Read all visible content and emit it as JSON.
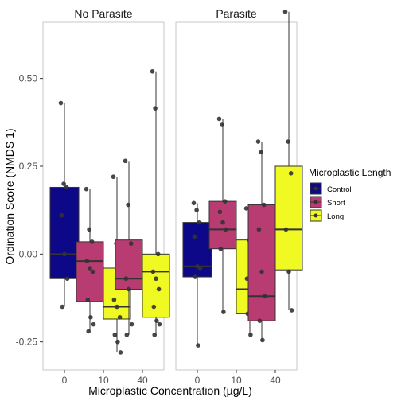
{
  "chart_data": {
    "type": "box",
    "ylabel": "Ordination Score (NMDS 1)",
    "xlabel": "Microplastic Concentration (µg/L)",
    "ylim": [
      -0.33,
      0.66
    ],
    "y_ticks": [
      -0.25,
      0.0,
      0.25,
      0.5
    ],
    "y_tick_labels": [
      "-0.25",
      "0.00",
      "0.25",
      "0.50"
    ],
    "x_categories": [
      "0",
      "10",
      "40"
    ],
    "grid": false,
    "legend_position": "right",
    "legend": {
      "title": "Microplastic Length",
      "items": [
        {
          "name": "Control",
          "color": "#0d0887"
        },
        {
          "name": "Short",
          "color": "#b83c72"
        },
        {
          "name": "Long",
          "color": "#f0f921"
        }
      ]
    },
    "panels": [
      {
        "label": "No Parasite",
        "boxes": [
          {
            "x": "0",
            "group": "Control",
            "q1": -0.07,
            "median": 0.0,
            "q3": 0.19,
            "whisker_low": -0.15,
            "whisker_high": 0.43,
            "points": [
              0.43,
              0.2,
              0.19,
              0.11,
              0.0,
              -0.07,
              -0.15
            ]
          },
          {
            "x": "10",
            "group": "Short",
            "q1": -0.135,
            "median": -0.02,
            "q3": 0.035,
            "whisker_low": -0.22,
            "whisker_high": 0.185,
            "points": [
              0.185,
              0.07,
              0.035,
              -0.02,
              -0.04,
              -0.05,
              -0.13,
              -0.18,
              -0.2,
              -0.22
            ]
          },
          {
            "x": "10",
            "group": "Long",
            "q1": -0.185,
            "median": -0.15,
            "q3": -0.04,
            "whisker_low": -0.28,
            "whisker_high": 0.22,
            "points": [
              0.22,
              0.03,
              -0.09,
              -0.13,
              -0.15,
              -0.18,
              -0.23,
              -0.25,
              -0.28
            ]
          },
          {
            "x": "40",
            "group": "Short",
            "q1": -0.1,
            "median": -0.07,
            "q3": 0.04,
            "whisker_low": -0.23,
            "whisker_high": 0.265,
            "points": [
              0.265,
              0.14,
              0.03,
              -0.07,
              -0.1,
              -0.2,
              -0.23
            ]
          },
          {
            "x": "40",
            "group": "Long",
            "q1": -0.18,
            "median": -0.05,
            "q3": 0.0,
            "whisker_low": -0.23,
            "whisker_high": 0.52,
            "points": [
              0.52,
              0.415,
              0.0,
              -0.05,
              -0.07,
              -0.1,
              -0.15,
              -0.19,
              -0.2,
              -0.23
            ]
          }
        ]
      },
      {
        "label": "Parasite",
        "boxes": [
          {
            "x": "0",
            "group": "Control",
            "q1": -0.065,
            "median": -0.035,
            "q3": 0.09,
            "whisker_low": -0.26,
            "whisker_high": 0.145,
            "points": [
              0.145,
              0.125,
              0.09,
              0.05,
              -0.035,
              -0.04,
              -0.065,
              -0.26
            ]
          },
          {
            "x": "10",
            "group": "Short",
            "q1": 0.015,
            "median": 0.07,
            "q3": 0.15,
            "whisker_low": -0.165,
            "whisker_high": 0.385,
            "points": [
              0.385,
              0.37,
              0.15,
              0.12,
              0.09,
              0.07,
              0.015,
              -0.165
            ]
          },
          {
            "x": "10",
            "group": "Long",
            "q1": -0.17,
            "median": -0.1,
            "q3": 0.04,
            "whisker_low": -0.23,
            "whisker_high": 0.13,
            "points": [
              0.13,
              0.04,
              -0.02,
              -0.07,
              -0.1,
              -0.13,
              -0.17,
              -0.23
            ]
          },
          {
            "x": "40",
            "group": "Short",
            "q1": -0.19,
            "median": -0.12,
            "q3": 0.14,
            "whisker_low": -0.245,
            "whisker_high": 0.32,
            "points": [
              0.32,
              0.29,
              0.14,
              0.07,
              -0.05,
              -0.12,
              -0.19,
              -0.245
            ]
          },
          {
            "x": "40",
            "group": "Long",
            "q1": -0.045,
            "median": 0.07,
            "q3": 0.25,
            "whisker_low": -0.16,
            "whisker_high": 0.69,
            "points": [
              0.69,
              0.32,
              0.23,
              0.07,
              -0.05,
              -0.16
            ]
          }
        ]
      }
    ]
  }
}
